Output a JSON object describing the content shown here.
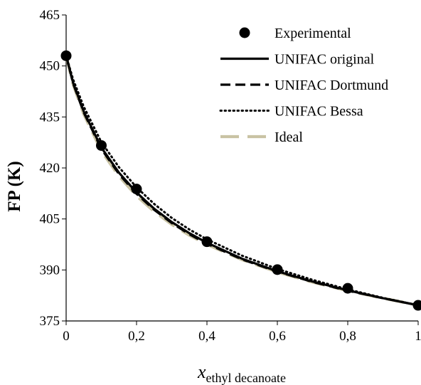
{
  "chart_data": {
    "type": "line",
    "title": "",
    "ylabel": "FP (K)",
    "xlabel_main": "x",
    "xlabel_sub": "ethyl decanoate",
    "xlim": [
      0,
      1
    ],
    "ylim": [
      375,
      465
    ],
    "x_ticks": [
      0,
      0.2,
      0.4,
      0.6,
      0.8,
      1
    ],
    "x_tick_labels": [
      "0",
      "0,2",
      "0,4",
      "0,6",
      "0,8",
      "1"
    ],
    "y_ticks": [
      375,
      390,
      405,
      420,
      435,
      450,
      465
    ],
    "y_tick_labels": [
      "375",
      "390",
      "405",
      "420",
      "435",
      "450",
      "465"
    ],
    "grid": false,
    "legend_position": "top-right",
    "series": [
      {
        "name": "Experimental",
        "style": "marker",
        "color": "#000000",
        "x": [
          0,
          0.1,
          0.2,
          0.4,
          0.6,
          0.8,
          1.0
        ],
        "y": [
          453.0,
          426.6,
          413.8,
          398.3,
          390.1,
          384.6,
          379.6
        ]
      },
      {
        "name": "UNIFAC original",
        "style": "solid",
        "color": "#000000",
        "x": [
          0,
          0.02,
          0.05,
          0.1,
          0.15,
          0.2,
          0.25,
          0.3,
          0.35,
          0.4,
          0.5,
          0.6,
          0.7,
          0.8,
          0.9,
          1.0
        ],
        "y": [
          453.0,
          445.0,
          436.6,
          426.0,
          418.6,
          412.8,
          408.0,
          404.1,
          400.8,
          398.0,
          393.3,
          389.6,
          386.6,
          384.0,
          381.7,
          379.6
        ]
      },
      {
        "name": "UNIFAC Dortmund",
        "style": "dashed",
        "color": "#000000",
        "x": [
          0,
          0.02,
          0.05,
          0.1,
          0.15,
          0.2,
          0.25,
          0.3,
          0.35,
          0.4,
          0.5,
          0.6,
          0.7,
          0.8,
          0.9,
          1.0
        ],
        "y": [
          453.0,
          444.8,
          436.3,
          425.6,
          418.2,
          412.4,
          407.7,
          403.8,
          400.5,
          397.7,
          393.1,
          389.5,
          386.5,
          383.9,
          381.7,
          379.6
        ]
      },
      {
        "name": "UNIFAC Bessa",
        "style": "dotted",
        "color": "#000000",
        "x": [
          0,
          0.02,
          0.05,
          0.1,
          0.15,
          0.2,
          0.25,
          0.3,
          0.35,
          0.4,
          0.5,
          0.6,
          0.7,
          0.8,
          0.9,
          1.0
        ],
        "y": [
          453.0,
          446.0,
          438.0,
          427.6,
          420.2,
          414.3,
          409.4,
          405.3,
          401.9,
          399.0,
          394.2,
          390.3,
          387.1,
          384.3,
          381.8,
          379.6
        ]
      },
      {
        "name": "Ideal",
        "style": "long-dash",
        "color": "#c9c3a4",
        "x": [
          0,
          0.02,
          0.05,
          0.1,
          0.15,
          0.2,
          0.25,
          0.3,
          0.35,
          0.4,
          0.5,
          0.6,
          0.7,
          0.8,
          0.9,
          1.0
        ],
        "y": [
          453.0,
          444.5,
          435.8,
          425.0,
          417.6,
          411.8,
          407.2,
          403.4,
          400.2,
          397.5,
          393.0,
          389.4,
          386.4,
          383.9,
          381.7,
          379.6
        ]
      }
    ]
  }
}
